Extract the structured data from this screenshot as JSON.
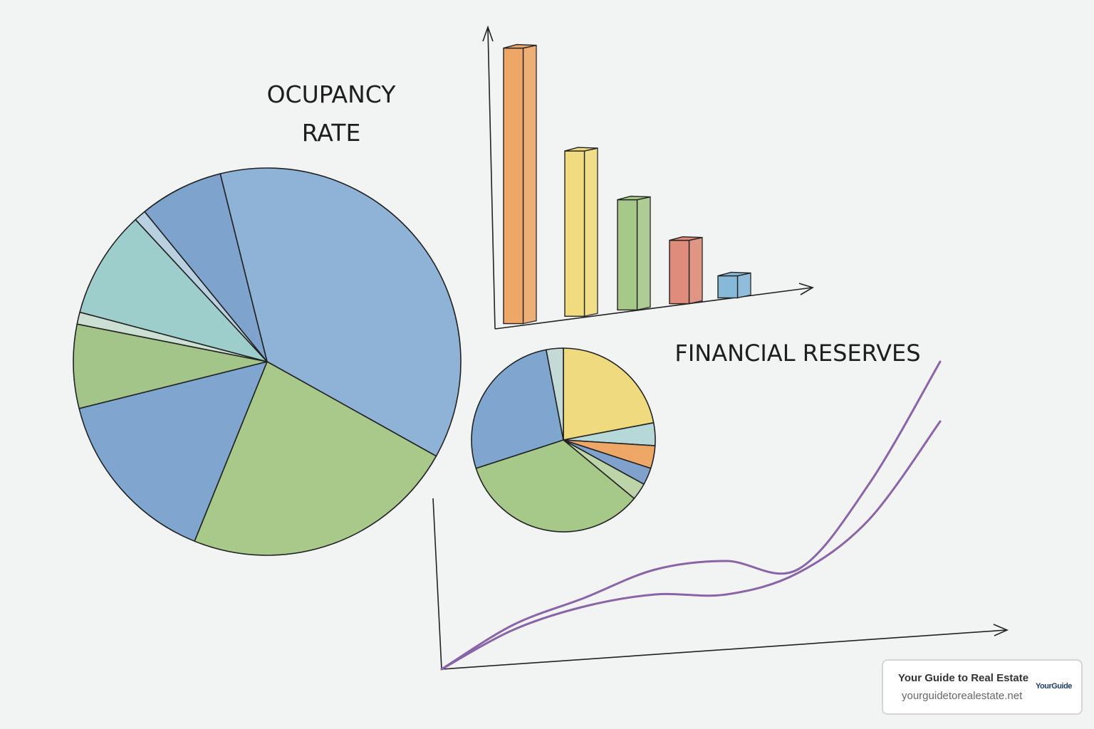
{
  "chart_data": [
    {
      "type": "pie",
      "title": "OCUPANCY RATE",
      "values": [
        37,
        23,
        15,
        7,
        1,
        9,
        1,
        7
      ],
      "colors": [
        "#8fb3d6",
        "#a8c98a",
        "#7fa6cf",
        "#a3c58a",
        "#cbdfd2",
        "#9dcecb",
        "#b8d0e0",
        "#7ea3cc"
      ]
    },
    {
      "type": "bar",
      "values": [
        100,
        60,
        40,
        23,
        8
      ],
      "colors": [
        "#eda868",
        "#f0dc7e",
        "#a6c98a",
        "#e08c7a",
        "#86b8d8"
      ],
      "ylim": [
        0,
        100
      ]
    },
    {
      "type": "pie",
      "title": "FINANCIAL RESERVES",
      "values": [
        22,
        4,
        4,
        3,
        3,
        34,
        27,
        3
      ],
      "colors": [
        "#f0da7e",
        "#b6d8d8",
        "#eda868",
        "#7fa1cc",
        "#bcd4a8",
        "#a6c98a",
        "#7ea6cf",
        "#c4dad6"
      ]
    },
    {
      "type": "line",
      "x": [
        0,
        1,
        2,
        3,
        4,
        5,
        6,
        7
      ],
      "xlim": [
        0,
        7
      ],
      "ylim": [
        0,
        432
      ],
      "series": [
        {
          "color": "#8a64a8",
          "values": [
            0,
            62,
            100,
            140,
            152,
            140,
            260,
            432
          ]
        },
        {
          "color": "#8a64a8",
          "values": [
            0,
            55,
            88,
            105,
            105,
            135,
            210,
            348
          ]
        }
      ]
    }
  ],
  "badge": {
    "title": "Your Guide to Real Estate",
    "url": "yourguidetorealestate.net",
    "logo": "YourGuide"
  }
}
